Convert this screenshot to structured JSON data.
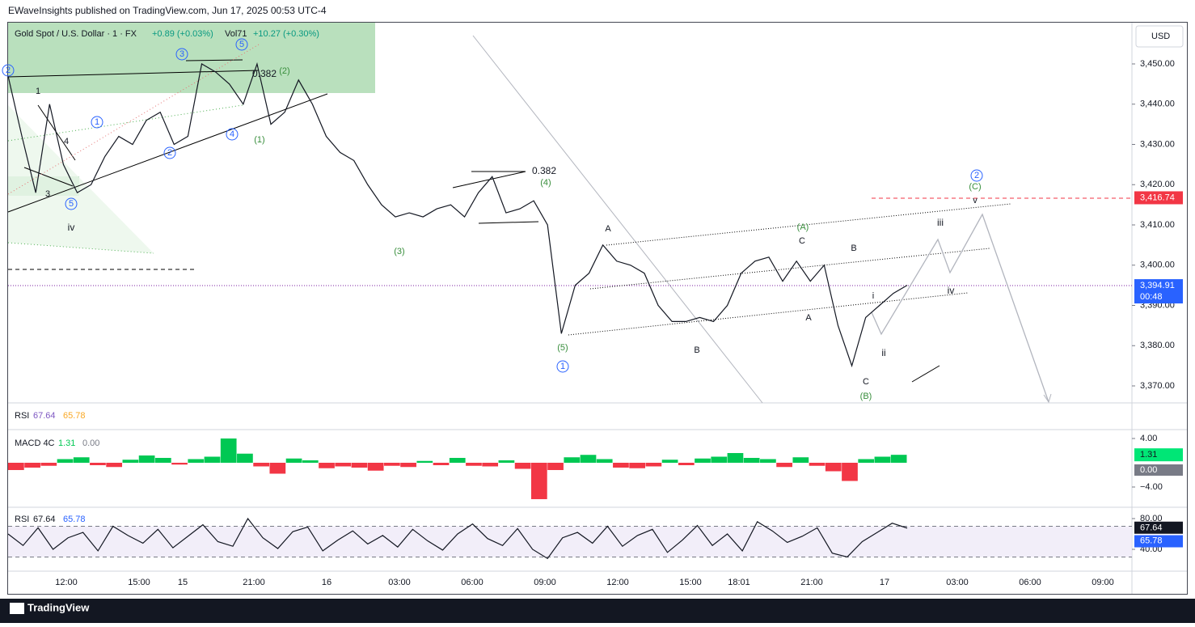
{
  "header": {
    "text": "EWaveInsights published on TradingView.com, Jun 17, 2025 00:53 UTC-4"
  },
  "legend": {
    "symbol": "Gold Spot / U.S. Dollar · 1 · FX",
    "change": "+0.89 (+0.03%)",
    "volume": "Vol71",
    "day_change": "+10.27 (+0.30%)"
  },
  "currency": "USD",
  "price": {
    "ylim": [
      3365.78,
      3460.25
    ],
    "ticks": [
      {
        "value": 3450,
        "label": "3,450.00"
      },
      {
        "value": 3440,
        "label": "3,440.00"
      },
      {
        "value": 3430,
        "label": "3,430.00"
      },
      {
        "value": 3420,
        "label": "3,420.00"
      },
      {
        "value": 3410,
        "label": "3,410.00"
      },
      {
        "value": 3400,
        "label": "3,400.00"
      },
      {
        "value": 3390,
        "label": "3,390.00"
      },
      {
        "value": 3380,
        "label": "3,380.00"
      },
      {
        "value": 3370,
        "label": "3,370.00"
      }
    ],
    "values": [
      3447,
      3432,
      3418,
      3440,
      3425,
      3418,
      3420,
      3427,
      3432,
      3430,
      3436,
      3438,
      3430,
      3432,
      3450,
      3448,
      3445,
      3440,
      3450,
      3435,
      3438,
      3446,
      3440,
      3432,
      3428,
      3426,
      3420,
      3415,
      3412,
      3413,
      3412,
      3414,
      3415,
      3412,
      3418,
      3422,
      3413,
      3414,
      3416,
      3410,
      3383,
      3395,
      3398,
      3405,
      3401,
      3400,
      3398,
      3390,
      3386,
      3386,
      3387,
      3386,
      3390,
      3398,
      3401,
      3402,
      3396,
      3401,
      3396,
      3400,
      3385,
      3375,
      3387,
      3390,
      3393,
      3395
    ],
    "target_tag": {
      "value": 3416.74,
      "label": "3,416.74"
    },
    "last_tag": {
      "value": 3394.91,
      "label": "3,394.91",
      "countdown": "00:48"
    }
  },
  "time_labels": [
    "12:00",
    "15:00",
    "15",
    "21:00",
    "16",
    "03:00",
    "06:00",
    "09:00",
    "12:00",
    "15:00",
    "18:01",
    "21:00",
    "17",
    "03:00",
    "06:00",
    "09:00"
  ],
  "waves": [
    "2",
    "1",
    "4",
    "3",
    "5",
    "iv",
    "3",
    "5",
    "0.382",
    "(2)",
    "(1)",
    "1",
    "2",
    "4",
    "0.382",
    "(4)",
    "(3)",
    "(5)",
    "1",
    "A",
    "B",
    "C",
    "(A)",
    "A",
    "B",
    "C",
    "(B)",
    "i",
    "ii",
    "iii",
    "iv",
    "v",
    "(C)",
    "2"
  ],
  "rsi_top": {
    "label": "RSI",
    "value": "67.64",
    "signal": "65.78"
  },
  "macd": {
    "label": "MACD 4C",
    "value": "1.31",
    "signal": "0.00",
    "ylim": [
      -7.07,
      5.2
    ],
    "ticks": [
      {
        "value": 4,
        "label": "4.00"
      },
      {
        "value": -4,
        "label": "−4.00"
      }
    ],
    "tag": {
      "value": 1.31,
      "label": "1.31"
    },
    "zero_tag": {
      "value": 0,
      "label": "0.00"
    },
    "values": [
      -1.2,
      -0.8,
      -0.5,
      0.6,
      0.9,
      -0.4,
      -0.7,
      0.5,
      1.2,
      0.8,
      -0.3,
      0.6,
      1.0,
      4.0,
      1.5,
      -0.6,
      -1.8,
      0.7,
      0.4,
      -0.9,
      -0.6,
      -0.8,
      -1.3,
      -0.5,
      -0.7,
      0.3,
      -0.4,
      0.8,
      -0.5,
      -0.6,
      0.4,
      -1.0,
      -6.0,
      -1.2,
      0.9,
      1.3,
      0.6,
      -0.8,
      -0.9,
      -0.6,
      0.5,
      -0.4,
      0.7,
      1.0,
      1.6,
      0.8,
      0.6,
      -0.7,
      0.9,
      -0.5,
      -1.4,
      -3.0,
      0.6,
      1.0,
      1.31
    ]
  },
  "rsi": {
    "label": "RSI",
    "value": "67.64",
    "signal": "65.78",
    "ylim": [
      12.6,
      93.7
    ],
    "ticks": [
      {
        "value": 80,
        "label": "80.00"
      },
      {
        "value": 40,
        "label": "40.00"
      }
    ],
    "bands": [
      70,
      30
    ],
    "tag": {
      "value": 67.64,
      "label": "67.64"
    },
    "signal_tag": {
      "value": 65.78,
      "label": "65.78"
    },
    "values": [
      60,
      45,
      68,
      40,
      55,
      62,
      38,
      70,
      58,
      48,
      66,
      42,
      57,
      72,
      50,
      44,
      80,
      55,
      41,
      63,
      69,
      38,
      52,
      64,
      47,
      58,
      43,
      66,
      51,
      39,
      60,
      73,
      54,
      45,
      67,
      40,
      28,
      55,
      62,
      48,
      70,
      44,
      58,
      66,
      36,
      52,
      71,
      45,
      60,
      38,
      76,
      64,
      49,
      57,
      68,
      35,
      30,
      50,
      62,
      74,
      67.64
    ]
  },
  "footer": {
    "brand": "TradingView"
  }
}
